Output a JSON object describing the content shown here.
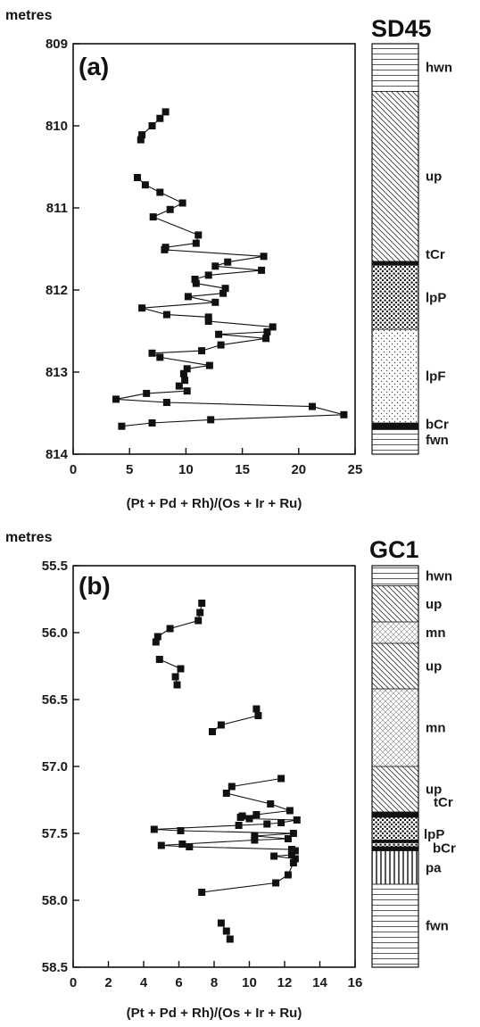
{
  "chart_data": [
    {
      "type": "line",
      "panel_label": "(a)",
      "core": "SD45",
      "ylabel": "metres",
      "xlabel": "(Pt + Pd + Rh)/(Os + Ir + Ru)",
      "xlim": [
        0,
        25
      ],
      "ylim": [
        809,
        814
      ],
      "xticks": [
        0,
        5,
        10,
        15,
        20,
        25
      ],
      "yticks": [
        809,
        810,
        811,
        812,
        813,
        814
      ],
      "y_reversed": true,
      "grid": false,
      "series": [
        {
          "points": [
            [
              8.2,
              809.83
            ],
            [
              7.7,
              809.91
            ],
            [
              7.0,
              810.0
            ],
            [
              6.1,
              810.11
            ],
            [
              6.0,
              810.17
            ]
          ]
        },
        {
          "points": [
            [
              5.7,
              810.63
            ],
            [
              6.4,
              810.72
            ],
            [
              7.7,
              810.81
            ],
            [
              9.7,
              810.94
            ],
            [
              8.6,
              811.02
            ],
            [
              7.1,
              811.11
            ],
            [
              11.1,
              811.33
            ],
            [
              10.9,
              811.43
            ],
            [
              8.2,
              811.48
            ],
            [
              8.1,
              811.51
            ],
            [
              16.9,
              811.59
            ],
            [
              13.7,
              811.66
            ],
            [
              12.6,
              811.71
            ],
            [
              16.7,
              811.76
            ],
            [
              12.0,
              811.82
            ],
            [
              10.8,
              811.87
            ],
            [
              10.9,
              811.92
            ],
            [
              13.5,
              811.98
            ],
            [
              13.3,
              812.04
            ],
            [
              10.2,
              812.08
            ],
            [
              12.6,
              812.15
            ],
            [
              6.1,
              812.22
            ],
            [
              8.3,
              812.3
            ],
            [
              12.0,
              812.33
            ],
            [
              12.0,
              812.38
            ],
            [
              17.7,
              812.45
            ],
            [
              17.2,
              812.51
            ],
            [
              12.9,
              812.54
            ],
            [
              17.1,
              812.59
            ],
            [
              13.1,
              812.67
            ],
            [
              11.4,
              812.74
            ],
            [
              7.0,
              812.77
            ],
            [
              7.7,
              812.82
            ],
            [
              12.1,
              812.92
            ],
            [
              10.1,
              812.96
            ],
            [
              9.8,
              813.02
            ],
            [
              9.9,
              813.1
            ],
            [
              9.4,
              813.17
            ],
            [
              10.1,
              813.23
            ],
            [
              6.5,
              813.26
            ],
            [
              3.8,
              813.33
            ],
            [
              8.3,
              813.37
            ],
            [
              21.2,
              813.42
            ],
            [
              24.0,
              813.52
            ],
            [
              12.2,
              813.58
            ],
            [
              7.0,
              813.62
            ],
            [
              4.3,
              813.66
            ]
          ]
        }
      ]
    },
    {
      "type": "line",
      "panel_label": "(b)",
      "core": "GC1",
      "ylabel": "metres",
      "xlabel": "(Pt + Pd + Rh)/(Os + Ir + Ru)",
      "xlim": [
        0,
        16
      ],
      "ylim": [
        55.5,
        58.5
      ],
      "xticks": [
        0,
        2,
        4,
        6,
        8,
        10,
        12,
        14,
        16
      ],
      "yticks": [
        55.5,
        56.0,
        56.5,
        57.0,
        57.5,
        58.0,
        58.5
      ],
      "y_reversed": true,
      "grid": false,
      "series": [
        {
          "points": [
            [
              7.3,
              55.78
            ],
            [
              7.2,
              55.85
            ],
            [
              7.1,
              55.91
            ],
            [
              5.5,
              55.97
            ],
            [
              4.8,
              56.03
            ],
            [
              4.7,
              56.07
            ]
          ]
        },
        {
          "points": [
            [
              4.9,
              56.2
            ],
            [
              6.1,
              56.27
            ],
            [
              5.8,
              56.33
            ],
            [
              5.9,
              56.39
            ]
          ]
        },
        {
          "points": [
            [
              10.4,
              56.57
            ],
            [
              10.5,
              56.62
            ],
            [
              8.4,
              56.69
            ],
            [
              7.9,
              56.74
            ]
          ]
        },
        {
          "points": [
            [
              11.8,
              57.09
            ],
            [
              9.0,
              57.15
            ],
            [
              8.7,
              57.2
            ],
            [
              11.2,
              57.28
            ],
            [
              12.3,
              57.33
            ],
            [
              10.4,
              57.36
            ],
            [
              9.5,
              57.38
            ],
            [
              9.6,
              57.37
            ],
            [
              10.0,
              57.39
            ],
            [
              12.7,
              57.4
            ],
            [
              11.8,
              57.42
            ],
            [
              11.0,
              57.43
            ],
            [
              9.4,
              57.44
            ],
            [
              4.6,
              57.47
            ],
            [
              6.1,
              57.48
            ],
            [
              12.5,
              57.5
            ],
            [
              10.3,
              57.52
            ],
            [
              12.2,
              57.54
            ],
            [
              10.3,
              57.55
            ],
            [
              6.2,
              57.58
            ],
            [
              5.0,
              57.59
            ],
            [
              6.6,
              57.6
            ],
            [
              12.4,
              57.62
            ],
            [
              12.6,
              57.63
            ],
            [
              12.4,
              57.66
            ],
            [
              11.4,
              57.67
            ],
            [
              12.6,
              57.69
            ],
            [
              12.5,
              57.72
            ],
            [
              12.2,
              57.81
            ],
            [
              11.5,
              57.87
            ],
            [
              7.3,
              57.94
            ]
          ]
        },
        {
          "points": [
            [
              8.4,
              58.17
            ],
            [
              8.7,
              58.23
            ],
            [
              8.9,
              58.29
            ]
          ]
        }
      ]
    }
  ],
  "strat_columns": [
    {
      "core": "SD45",
      "units": [
        {
          "label": "hwn",
          "from": 809.0,
          "to": 809.58,
          "pattern": "hlines"
        },
        {
          "label": "up",
          "from": 809.58,
          "to": 811.65,
          "pattern": "diag"
        },
        {
          "label": "tCr",
          "from": 811.65,
          "to": 811.7,
          "pattern": "solid"
        },
        {
          "label": "lpP",
          "from": 811.7,
          "to": 812.48,
          "pattern": "dense-dots"
        },
        {
          "label": "lpF",
          "from": 812.48,
          "to": 813.62,
          "pattern": "sparse-dots"
        },
        {
          "label": "bCr",
          "from": 813.62,
          "to": 813.7,
          "pattern": "solid"
        },
        {
          "label": "fwn",
          "from": 813.7,
          "to": 814.0,
          "pattern": "hlines"
        }
      ]
    },
    {
      "core": "GC1",
      "units": [
        {
          "label": "hwn",
          "from": 55.5,
          "to": 55.65,
          "pattern": "hlines"
        },
        {
          "label": "up",
          "from": 55.65,
          "to": 55.92,
          "pattern": "diag"
        },
        {
          "label": "mn",
          "from": 55.92,
          "to": 56.08,
          "pattern": "cross"
        },
        {
          "label": "up",
          "from": 56.08,
          "to": 56.42,
          "pattern": "diag"
        },
        {
          "label": "mn",
          "from": 56.42,
          "to": 57.0,
          "pattern": "cross"
        },
        {
          "label": "up",
          "from": 57.0,
          "to": 57.34,
          "pattern": "diag"
        },
        {
          "label": "tCr",
          "from": 57.34,
          "to": 57.38,
          "pattern": "solid"
        },
        {
          "label": "lpP",
          "from": 57.38,
          "to": 57.55,
          "pattern": "dense-dots"
        },
        {
          "label": "",
          "from": 57.55,
          "to": 57.57,
          "pattern": "solid"
        },
        {
          "label": "",
          "from": 57.57,
          "to": 57.6,
          "pattern": "dense-dots"
        },
        {
          "label": "bCr",
          "from": 57.6,
          "to": 57.63,
          "pattern": "solid"
        },
        {
          "label": "pa",
          "from": 57.63,
          "to": 57.88,
          "pattern": "vlines"
        },
        {
          "label": "fwn",
          "from": 57.88,
          "to": 58.5,
          "pattern": "hlines"
        }
      ]
    }
  ]
}
